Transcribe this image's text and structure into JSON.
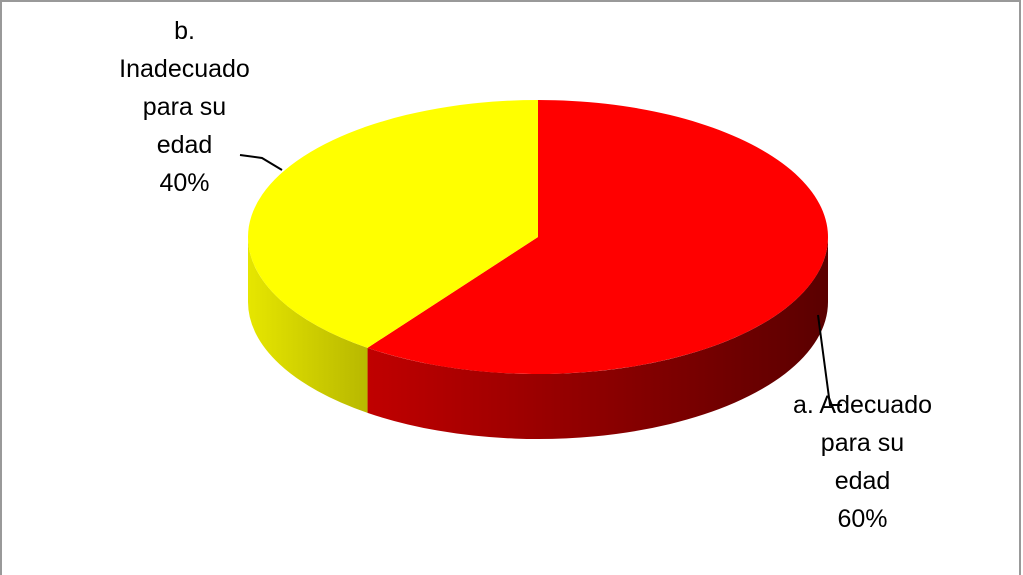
{
  "chart_data": {
    "type": "pie",
    "view": "3d",
    "categories": [
      "a. Adecuado para su edad",
      "b. Inadecuado para su edad"
    ],
    "values": [
      60,
      40
    ],
    "value_labels": [
      "60%",
      "40%"
    ],
    "colors": [
      "#ff0000",
      "#ffff00"
    ]
  }
}
